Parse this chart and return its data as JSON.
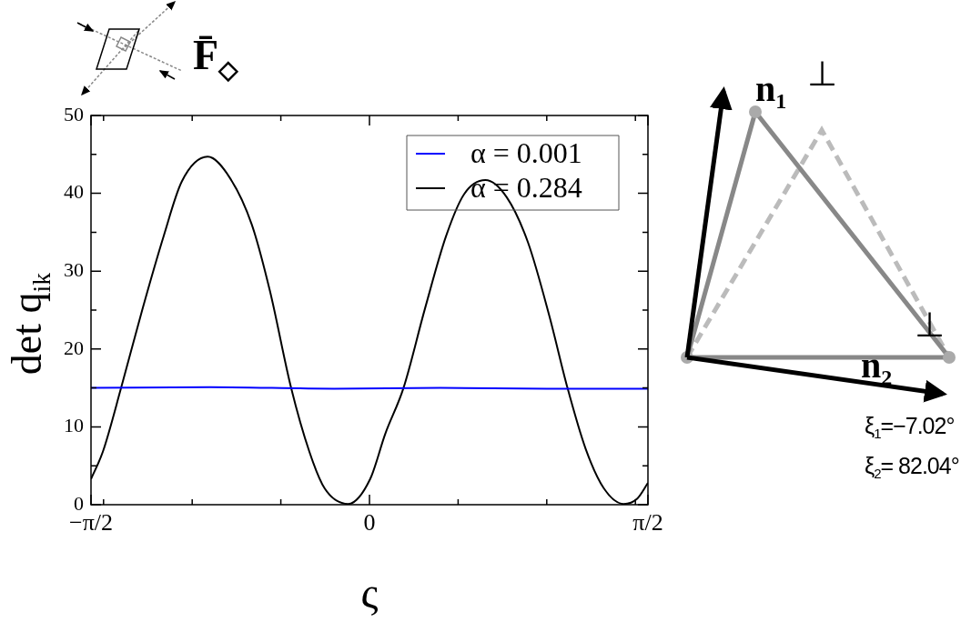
{
  "chart_data": {
    "type": "line",
    "title": "F̄$_{◇}$",
    "xlabel": "ς",
    "ylabel": "det q$_{ik}$",
    "xlim": [
      -1.5708,
      1.5708
    ],
    "ylim": [
      0,
      50
    ],
    "xticks": [
      {
        "value": -1.5708,
        "label": "−π/2"
      },
      {
        "value": -1.5,
        "label": null
      },
      {
        "value": -1,
        "label": null
      },
      {
        "value": -0.5,
        "label": null
      },
      0,
      {
        "value": 0.5,
        "label": null
      },
      {
        "value": 1,
        "label": null
      },
      {
        "value": 1.5,
        "label": null
      },
      {
        "value": 1.5708,
        "label": "π/2"
      }
    ],
    "yticks": [
      0,
      {
        "value": 5,
        "label": null
      },
      10,
      {
        "value": 15,
        "label": null
      },
      20,
      {
        "value": 25,
        "label": null
      },
      30,
      {
        "value": 35,
        "label": null
      },
      40,
      {
        "value": 45,
        "label": null
      },
      50
    ],
    "legend": "top right",
    "grid": false,
    "series": [
      {
        "name": "α = 0.001",
        "color": "#0000ff",
        "x": [
          -1.5708,
          -0.9,
          -0.2,
          0.4,
          1.0,
          1.5708
        ],
        "values": [
          15.0,
          15.1,
          14.9,
          15.0,
          14.9,
          14.9
        ]
      },
      {
        "name": "α = 0.284",
        "color": "#000000",
        "x": [
          -1.5708,
          -1.504,
          -1.401,
          -1.281,
          -1.161,
          -1.059,
          -0.913,
          -0.785,
          -0.664,
          -0.562,
          -0.442,
          -0.339,
          -0.253,
          -0.12,
          0.004,
          0.089,
          0.192,
          0.312,
          0.432,
          0.534,
          0.654,
          0.774,
          0.894,
          1.014,
          1.117,
          1.219,
          1.322,
          1.434,
          1.511,
          1.5708
        ],
        "values": [
          3.3,
          6.8,
          15.0,
          25.1,
          34.5,
          41.5,
          44.7,
          41.9,
          36.0,
          27.5,
          15.0,
          6.8,
          2.1,
          0.1,
          3.3,
          9.1,
          15.0,
          25.1,
          34.5,
          39.9,
          41.7,
          39.5,
          33.7,
          24.3,
          15.0,
          7.2,
          2.1,
          0.1,
          0.8,
          2.8
        ]
      }
    ],
    "annotations": [
      "n$_{1}$",
      "⊥",
      "⊥",
      "n$_{2}$",
      "ξ$_{1}$=−7.02°",
      "ξ$_{2}$= 82.04°"
    ]
  }
}
